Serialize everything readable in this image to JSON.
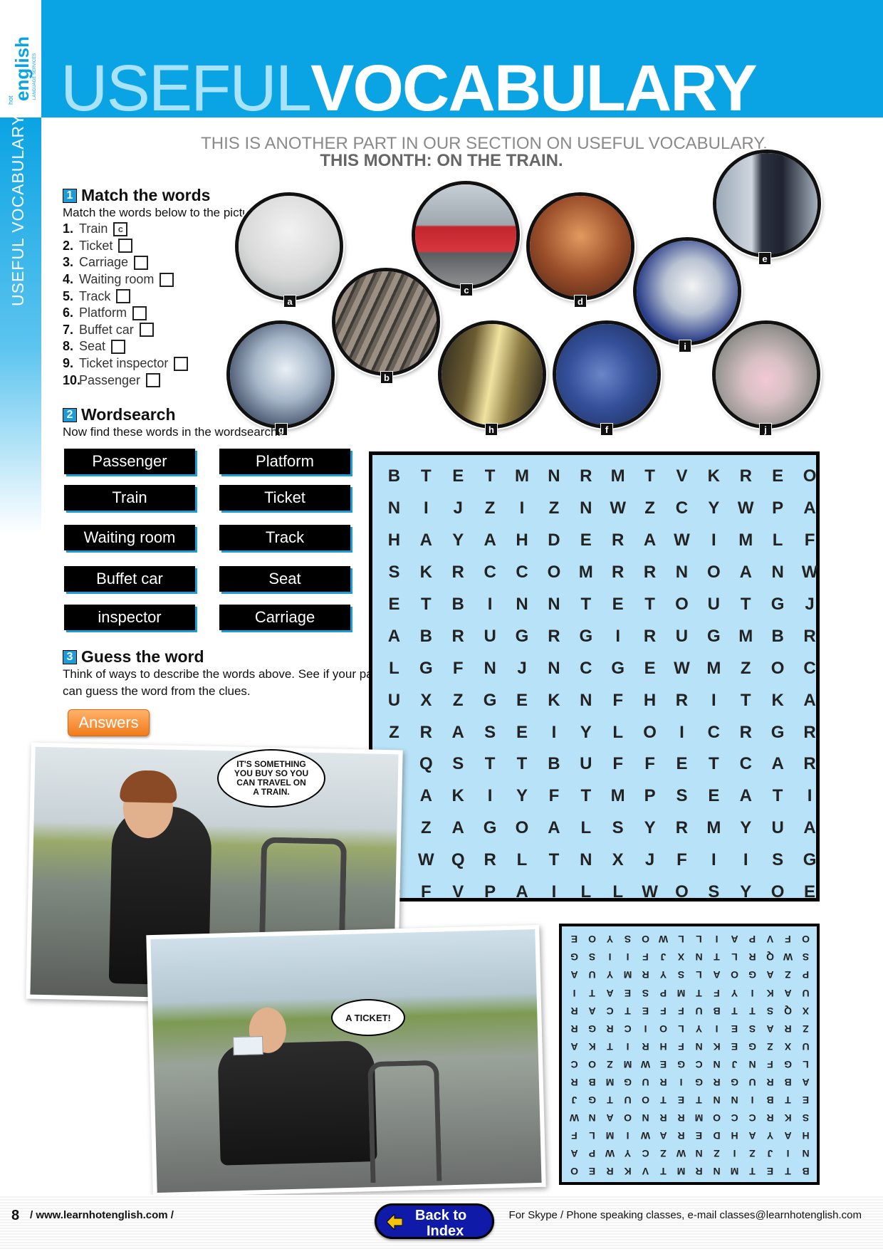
{
  "header": {
    "logo_hot": "hot",
    "logo_english": "english",
    "logo_services": "LANGUAGE SERVICES",
    "title_light": "USEFUL",
    "title_bold": "VOCABULARY",
    "side_label": "USEFUL VOCABULARY"
  },
  "intro": {
    "line1": "THIS IS ANOTHER PART IN OUR SECTION ON USEFUL VOCABULARY.",
    "line2": "THIS MONTH: ON THE TRAIN."
  },
  "section1": {
    "number": "1",
    "title": "Match the words",
    "desc": "Match the words below to the pictures.",
    "items": [
      {
        "num": "1.",
        "label": "Train",
        "answer": "c"
      },
      {
        "num": "2.",
        "label": "Ticket",
        "answer": ""
      },
      {
        "num": "3.",
        "label": "Carriage",
        "answer": ""
      },
      {
        "num": "4.",
        "label": "Waiting room",
        "answer": ""
      },
      {
        "num": "5.",
        "label": "Track",
        "answer": ""
      },
      {
        "num": "6.",
        "label": "Platform",
        "answer": ""
      },
      {
        "num": "7.",
        "label": "Buffet car",
        "answer": ""
      },
      {
        "num": "8.",
        "label": "Seat",
        "answer": ""
      },
      {
        "num": "9.",
        "label": "Ticket inspector",
        "answer": ""
      },
      {
        "num": "10.",
        "label": "Passenger",
        "answer": ""
      }
    ]
  },
  "pictures": [
    "a",
    "b",
    "c",
    "d",
    "e",
    "f",
    "g",
    "h",
    "i",
    "j"
  ],
  "section2": {
    "number": "2",
    "title": "Wordsearch",
    "desc": "Now find these words in the wordsearch.",
    "words": [
      "Passenger",
      "Platform",
      "Train",
      "Ticket",
      "Waiting room",
      "Track",
      "Buffet car",
      "Seat",
      "inspector",
      "Carriage"
    ]
  },
  "section3": {
    "number": "3",
    "title": "Guess the word",
    "desc1": "Think of ways to describe the words above. See if your partner",
    "desc2": "can guess the word from the clues.",
    "answers_button": "Answers"
  },
  "wordsearch": [
    "BTETMNRMTVKREO",
    "NIJZIZNWZCYWPA",
    "HAYAHDERAWIMLF",
    "SKRCCOMRRNOANW",
    "ETBINNTETOUTGJ",
    "ABRUGRGIRUGMBR",
    "LGFNJNCGEWMZOC",
    "UXZGEKNFHRITKA",
    "ZRASEIYLOICRGR",
    "XQSTTBUFFETCAR",
    "UAKIYFTMPSEATI",
    "PZAGOALSYRMYUA",
    "SWQRLTNXJFIISG",
    "OFVPAILLWOSYOE"
  ],
  "comic": {
    "bubble1": "IT'S SOMETHING YOU BUY SO YOU CAN TRAVEL ON A TRAIN.",
    "bubble2": "A TICKET!"
  },
  "footer": {
    "page_number": "8",
    "website": "/ www.learnhotenglish.com /",
    "back_line1": "Back to",
    "back_line2": "Index",
    "contact": "For Skype / Phone speaking classes, e-mail classes@learnhotenglish.com"
  },
  "colors": {
    "brand_blue": "#0aa3e3",
    "wordsearch_bg": "#b8e2f7",
    "answers_orange": "#f07a1a",
    "back_button": "#0f1ba8"
  }
}
